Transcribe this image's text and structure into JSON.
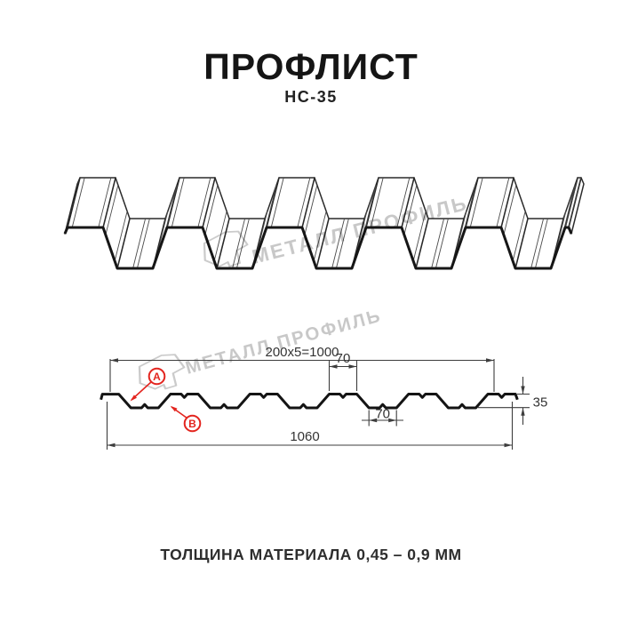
{
  "page": {
    "title": "ПРОФЛИСТ",
    "subtitle": "НС-35",
    "footer": "ТОЛЩИНА МАТЕРИАЛА 0,45 – 0,9 ММ"
  },
  "watermark": {
    "text": "МЕТАЛЛ ПРОФИЛЬ",
    "color": "#c8c8c8",
    "logo_icon": "metal-profile-logo"
  },
  "section": {
    "dim_top_width": "200x5=1000",
    "dim_crest_width": "70",
    "dim_valley_width": "70",
    "dim_height": "35",
    "dim_total_width": "1060",
    "label_a": "А",
    "label_b": "В",
    "accent_color": "#e3251f",
    "line_color": "#3d3d3d",
    "profile_color": "#141414"
  }
}
